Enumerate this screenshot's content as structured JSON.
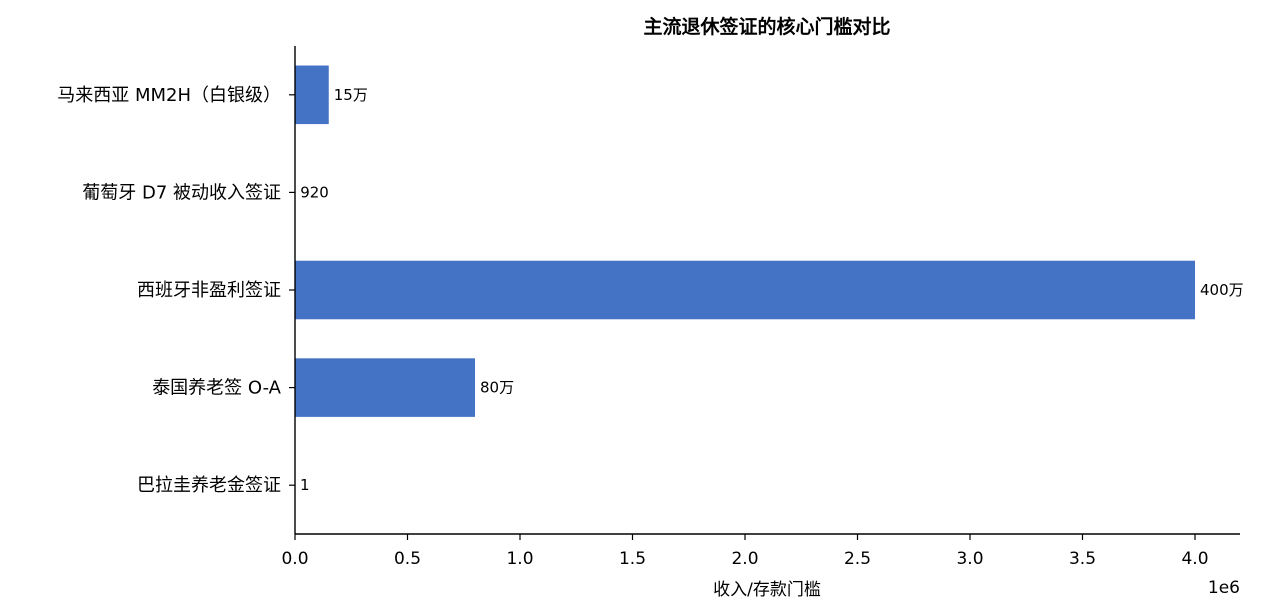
{
  "chart_data": {
    "type": "bar",
    "orientation": "horizontal",
    "title": "主流退休签证的核心门槛对比",
    "xlabel": "收入/存款门槛",
    "ylabel": "",
    "x_offset_label": "1e6",
    "xlim": [
      0,
      4200000
    ],
    "x_ticks": [
      0,
      500000,
      1000000,
      1500000,
      2000000,
      2500000,
      3000000,
      3500000,
      4000000
    ],
    "x_tick_labels": [
      "0.0",
      "0.5",
      "1.0",
      "1.5",
      "2.0",
      "2.5",
      "3.0",
      "3.5",
      "4.0"
    ],
    "categories": [
      "马来西亚 MM2H（白银级）",
      "葡萄牙 D7 被动收入签证",
      "西班牙非盈利签证",
      "泰国养老签 O-A",
      "巴拉圭养老金签证"
    ],
    "values": [
      150000,
      920,
      4000000,
      800000,
      1
    ],
    "data_labels": [
      "15万",
      "920",
      "400万",
      "80万",
      "1"
    ],
    "bar_color": "#4472c4",
    "grid": false,
    "legend": "none"
  }
}
